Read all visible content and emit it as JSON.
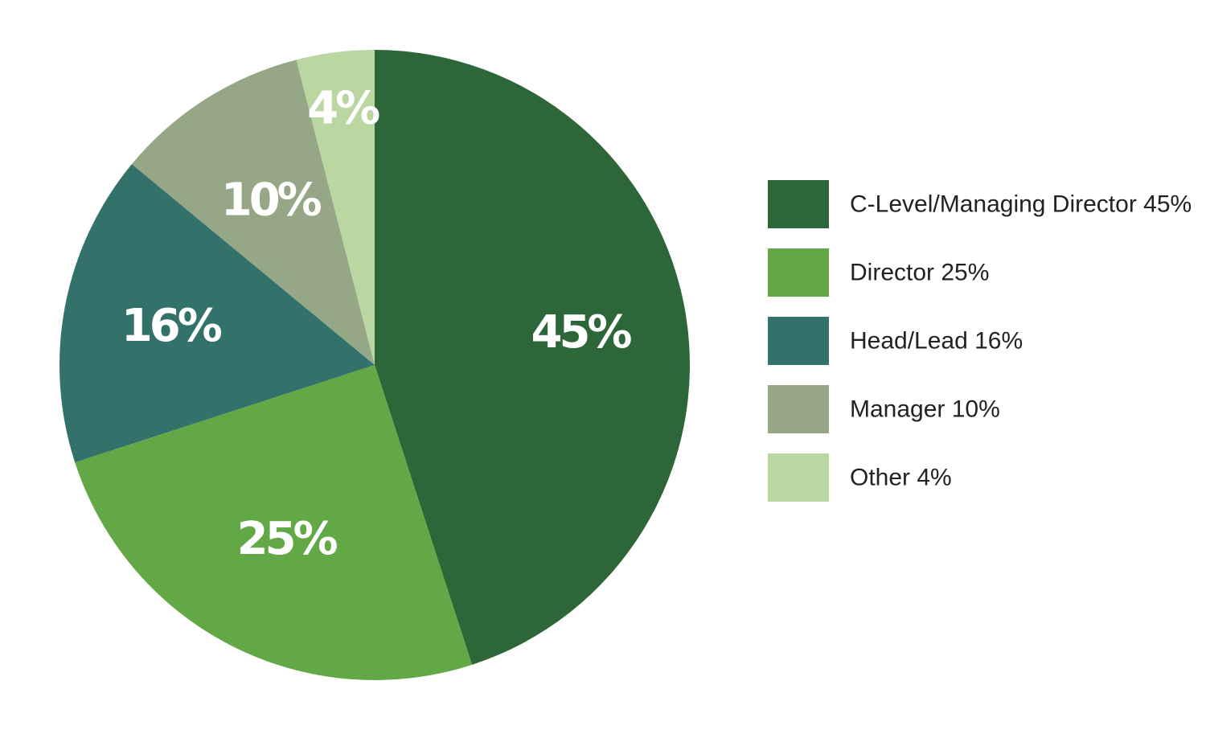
{
  "chart_data": {
    "type": "pie",
    "categories": [
      "C-Level/Managing Director",
      "Director",
      "Head/Lead",
      "Manager",
      "Other"
    ],
    "values": [
      45,
      25,
      16,
      10,
      4
    ],
    "slice_labels": [
      "45%",
      "25%",
      "16%",
      "10%",
      "4%"
    ],
    "legend_labels": [
      "C-Level/Managing Director 45%",
      "Director 25%",
      "Head/Lead 16%",
      "Manager 10%",
      "Other 4%"
    ],
    "colors": [
      "#2d6638",
      "#63a846",
      "#33716b",
      "#96a788",
      "#bad6a1"
    ],
    "legend_position": "right"
  }
}
